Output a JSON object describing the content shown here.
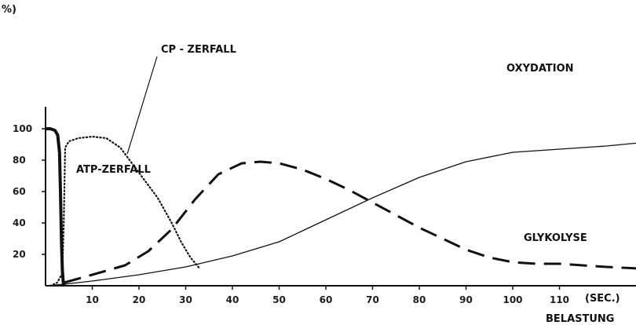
{
  "chart_data": {
    "type": "line",
    "ylabel": "%)",
    "xunit": "(SEC.)",
    "xlabel": "BELASTUNG",
    "xlim": [
      0,
      128
    ],
    "ylim": [
      0,
      110
    ],
    "x_ticks": [
      10,
      20,
      30,
      40,
      50,
      60,
      70,
      80,
      90,
      100,
      110
    ],
    "y_ticks": [
      20,
      40,
      60,
      80,
      100
    ],
    "y_tick_labels": [
      "20",
      "40",
      "60",
      "80",
      "100"
    ],
    "grid": false,
    "series": [
      {
        "name": "ATP-ZERFALL",
        "style": "solid-thick",
        "x": [
          0,
          1,
          2,
          2.6,
          3,
          3.2,
          3.4,
          3.6,
          3.8,
          4
        ],
        "y": [
          100,
          100,
          99,
          96,
          85,
          60,
          30,
          10,
          2,
          0
        ]
      },
      {
        "name": "CP-ZERFALL",
        "style": "dotted",
        "x": [
          1,
          2.5,
          3.6,
          3.9,
          4.2,
          5,
          7,
          10,
          13,
          16,
          20,
          24,
          27,
          29,
          31,
          33
        ],
        "y": [
          0,
          2,
          8,
          40,
          88,
          92,
          94,
          95,
          94,
          88,
          72,
          56,
          40,
          28,
          18,
          11
        ]
      },
      {
        "name": "GLYKOLYSE",
        "style": "dashed",
        "x": [
          4,
          10,
          17,
          22,
          27,
          32,
          37,
          42,
          46,
          50,
          55,
          60,
          65,
          70,
          75,
          80,
          85,
          90,
          95,
          100,
          105,
          110,
          120,
          127
        ],
        "y": [
          2,
          7,
          13,
          22,
          36,
          55,
          71,
          78,
          79,
          78,
          74,
          68,
          61,
          53,
          45,
          37,
          30,
          23,
          18,
          15,
          14,
          14,
          12,
          11
        ]
      },
      {
        "name": "OXYDATION",
        "style": "solid-thin",
        "x": [
          2,
          4,
          10,
          20,
          30,
          40,
          50,
          55,
          60,
          70,
          80,
          90,
          100,
          110,
          120,
          127
        ],
        "y": [
          0.5,
          1,
          3,
          7,
          12,
          19,
          28,
          35,
          42,
          56,
          69,
          79,
          85,
          87,
          89,
          91
        ]
      }
    ],
    "annotations": [
      {
        "text": "CP - ZERFALL",
        "target": "CP-ZERFALL"
      },
      {
        "text": "ATP-ZERFALL",
        "target": "ATP-ZERFALL"
      },
      {
        "text": "OXYDATION",
        "target": "OXYDATION"
      },
      {
        "text": "GLYKOLYSE",
        "target": "GLYKOLYSE"
      }
    ],
    "colors": {
      "ink": "#111111",
      "background": "#ffffff"
    }
  }
}
